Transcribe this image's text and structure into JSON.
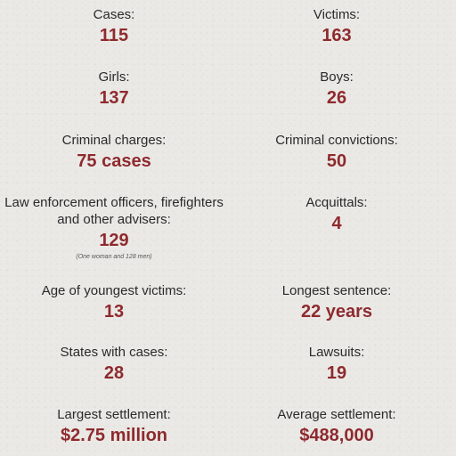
{
  "stats": [
    {
      "label": "Cases:",
      "value": "115"
    },
    {
      "label": "Victims:",
      "value": "163"
    },
    {
      "label": "Girls:",
      "value": "137"
    },
    {
      "label": "Boys:",
      "value": "26"
    },
    {
      "label": "Criminal charges:",
      "value": "75 cases"
    },
    {
      "label": "Criminal convictions:",
      "value": "50"
    },
    {
      "label": "Law enforcement officers, firefighters",
      "label2": "and other advisers:",
      "value": "129",
      "note": "(One woman and 128 men)"
    },
    {
      "label": "Acquittals:",
      "value": "4"
    },
    {
      "label": "Age of youngest victims:",
      "value": "13"
    },
    {
      "label": "Longest sentence:",
      "value": "22 years"
    },
    {
      "label": "States with cases:",
      "value": "28"
    },
    {
      "label": "Lawsuits:",
      "value": "19"
    },
    {
      "label": "Largest settlement:",
      "value": "$2.75 million"
    },
    {
      "label": "Average settlement:",
      "value": "$488,000"
    }
  ],
  "colors": {
    "background": "#ebe9e6",
    "label": "#2a2a2a",
    "value": "#8e2a2e"
  }
}
